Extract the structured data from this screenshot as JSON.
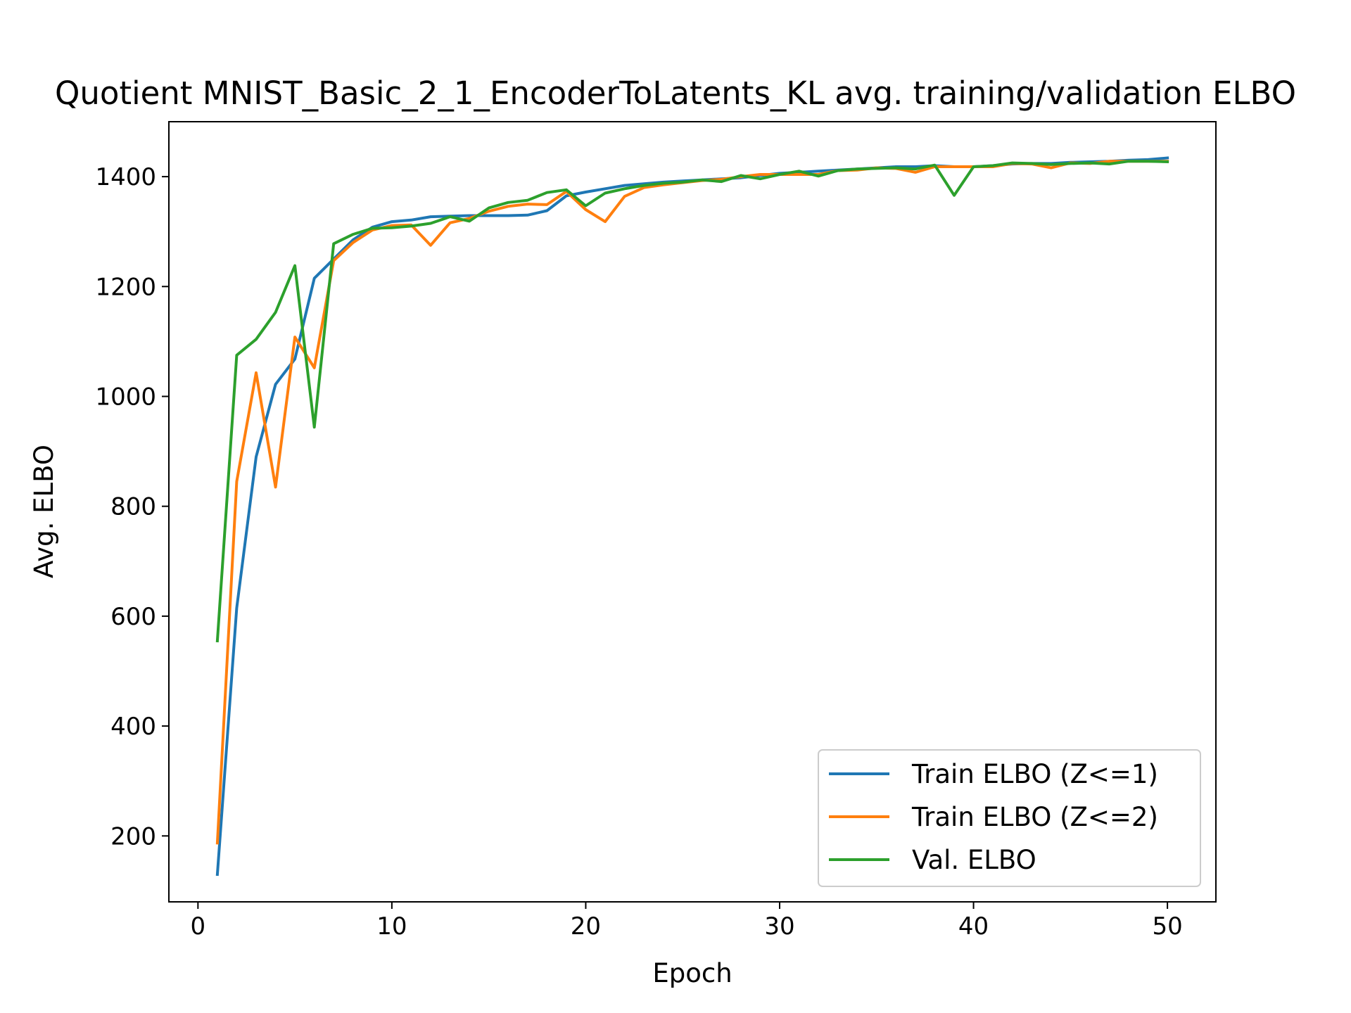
{
  "chart_data": {
    "type": "line",
    "title": "Quotient MNIST_Basic_2_1_EncoderToLatents_KL avg. training/validation ELBO",
    "xlabel": "Epoch",
    "ylabel": "Avg. ELBO",
    "xlim": [
      -1.5,
      52.5
    ],
    "ylim": [
      80,
      1500
    ],
    "xticks": [
      0,
      10,
      20,
      30,
      40,
      50
    ],
    "yticks": [
      200,
      400,
      600,
      800,
      1000,
      1200,
      1400
    ],
    "grid": false,
    "legend_position": "lower right",
    "x": [
      1,
      2,
      3,
      4,
      5,
      6,
      7,
      8,
      9,
      10,
      11,
      12,
      13,
      14,
      15,
      16,
      17,
      18,
      19,
      20,
      21,
      22,
      23,
      24,
      25,
      26,
      27,
      28,
      29,
      30,
      31,
      32,
      33,
      34,
      35,
      36,
      37,
      38,
      39,
      40,
      41,
      42,
      43,
      44,
      45,
      46,
      47,
      48,
      49,
      50
    ],
    "series": [
      {
        "name": "Train ELBO (Z<=1)",
        "color": "#1f77b4",
        "values": [
          130,
          615,
          890,
          1022,
          1068,
          1215,
          1250,
          1285,
          1308,
          1318,
          1321,
          1327,
          1328,
          1329,
          1329,
          1329,
          1330,
          1338,
          1365,
          1372,
          1378,
          1384,
          1387,
          1390,
          1392,
          1394,
          1396,
          1398,
          1402,
          1406,
          1408,
          1410,
          1412,
          1414,
          1416,
          1418,
          1418,
          1420,
          1418,
          1418,
          1420,
          1423,
          1424,
          1424,
          1426,
          1427,
          1428,
          1430,
          1431,
          1434
        ]
      },
      {
        "name": "Train ELBO (Z<=2)",
        "color": "#ff7f0e",
        "values": [
          187,
          845,
          1043,
          835,
          1108,
          1052,
          1247,
          1280,
          1303,
          1311,
          1312,
          1275,
          1316,
          1324,
          1337,
          1346,
          1350,
          1349,
          1373,
          1340,
          1318,
          1364,
          1380,
          1385,
          1389,
          1393,
          1395,
          1400,
          1404,
          1404,
          1404,
          1404,
          1411,
          1412,
          1416,
          1415,
          1408,
          1418,
          1418,
          1418,
          1418,
          1424,
          1423,
          1416,
          1425,
          1424,
          1428,
          1428,
          1428,
          1428
        ]
      },
      {
        "name": "Val. ELBO",
        "color": "#2ca02c",
        "values": [
          555,
          1075,
          1104,
          1153,
          1238,
          944,
          1278,
          1295,
          1306,
          1307,
          1310,
          1315,
          1327,
          1319,
          1343,
          1353,
          1357,
          1371,
          1376,
          1347,
          1370,
          1378,
          1384,
          1388,
          1390,
          1394,
          1391,
          1402,
          1396,
          1404,
          1410,
          1401,
          1411,
          1414,
          1415,
          1416,
          1414,
          1421,
          1366,
          1418,
          1420,
          1425,
          1424,
          1422,
          1424,
          1425,
          1423,
          1428,
          1428,
          1427
        ]
      }
    ]
  }
}
